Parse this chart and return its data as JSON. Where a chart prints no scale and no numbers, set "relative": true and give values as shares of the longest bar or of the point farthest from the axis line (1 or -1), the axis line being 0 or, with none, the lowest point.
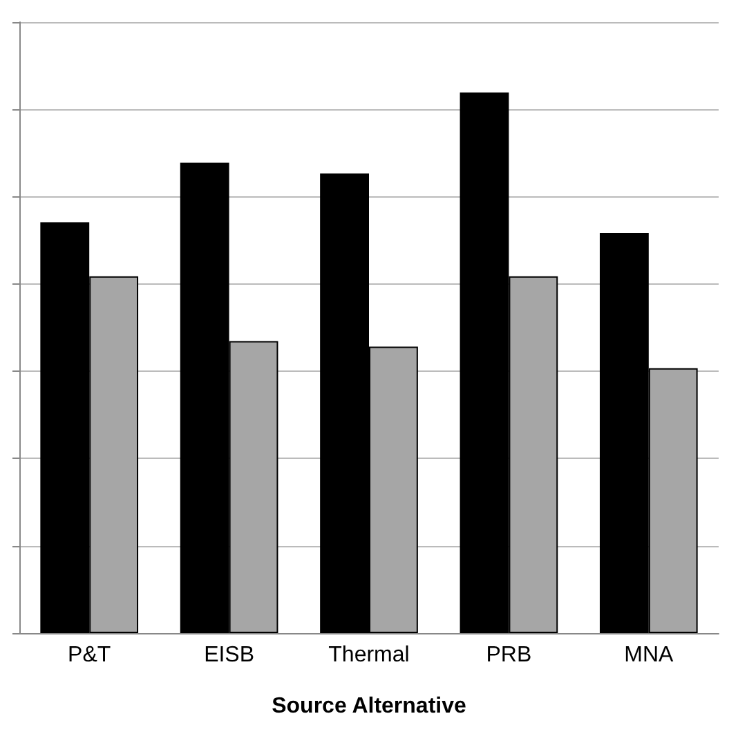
{
  "chart_data": {
    "type": "bar",
    "xlabel": "Source Alternative",
    "categories": [
      "P&T",
      "EISB",
      "Thermal",
      "PRB",
      "MNA"
    ],
    "series": [
      {
        "color": "#000000",
        "values": [
          0.76,
          0.87,
          0.85,
          1,
          0.74
        ]
      },
      {
        "color": "#a6a6a6",
        "values": [
          0.66,
          0.54,
          0.53,
          0.66,
          0.49
        ]
      }
    ],
    "relative": true,
    "grid": "y"
  }
}
